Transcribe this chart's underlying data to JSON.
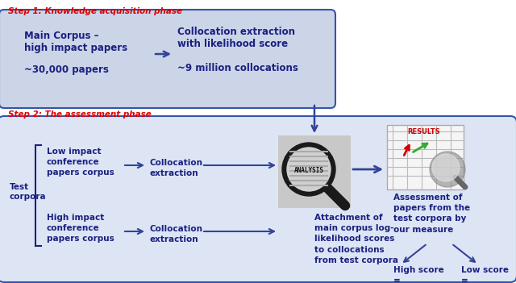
{
  "bg_color": "#ffffff",
  "step1_label": "Step 1: Knowledge acquisition phase",
  "step2_label": "Step 2: The assessment phase",
  "red_color": "#dd0000",
  "box_fill": "#ccd4e8",
  "box_border": "#3355aa",
  "box2_fill": "#d4ddf0",
  "step2_fill": "#dde5f5",
  "text_color": "#1a2080",
  "box1_line1": "Main Corpus –",
  "box1_line2": "high impact papers",
  "box1_line3": "~30,000 papers",
  "box2_line1": "Collocation extraction",
  "box2_line2": "with likelihood score",
  "box2_line3": "~9 million collocations",
  "low_impact_text": "Low impact\nconference\npapers corpus",
  "high_impact_text": "High impact\nconference\npapers corpus",
  "collocation_text": "Collocation\nextraction",
  "attachment_text": "Attachment of\nmain corpus log-\nlikelihood scores\nto collocations\nfrom test corpora",
  "assessment_text": "Assessment of\npapers from the\ntest corpora by\nour measure",
  "high_score_text": "High score\n=\nhigh quality",
  "low_score_text": "Low score\n=\nlow quality",
  "test_corpora_text": "Test\ncorpora",
  "analysis_label": "ANALYSIS",
  "results_label": "RESULTS",
  "arrow_color": "#334499"
}
